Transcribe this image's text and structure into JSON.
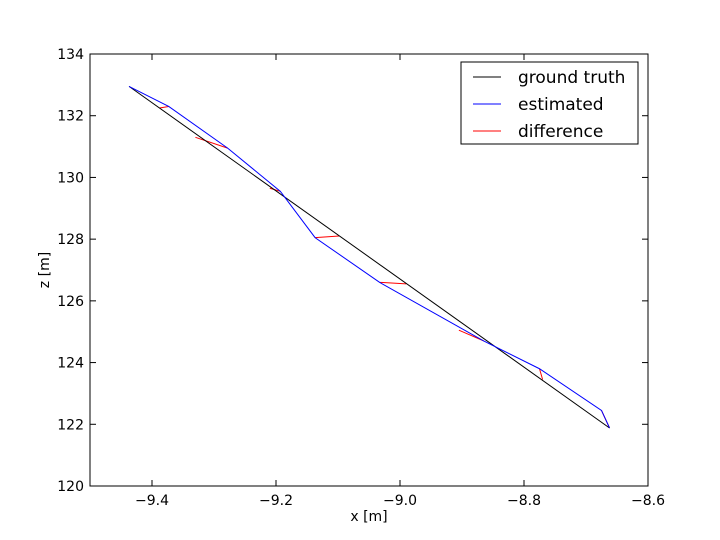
{
  "chart_data": {
    "type": "line",
    "title": "",
    "xlabel": "x [m]",
    "ylabel": "z [m]",
    "xlim": [
      -9.5,
      -8.6
    ],
    "ylim": [
      120,
      134
    ],
    "xticks": [
      -9.4,
      -9.2,
      -9.0,
      -8.8,
      -8.6
    ],
    "xtick_labels": [
      "−9.4",
      "−9.2",
      "−9.0",
      "−8.8",
      "−8.6"
    ],
    "yticks": [
      120,
      122,
      124,
      126,
      128,
      130,
      132,
      134
    ],
    "ytick_labels": [
      "120",
      "122",
      "124",
      "126",
      "128",
      "130",
      "132",
      "134"
    ],
    "grid": false,
    "legend_position": "top-right",
    "series": [
      {
        "name": "ground truth",
        "color": "#000000",
        "x": [
          -9.437,
          -8.662
        ],
        "y": [
          132.95,
          121.88
        ]
      },
      {
        "name": "estimated",
        "color": "#0000ff",
        "x": [
          -9.437,
          -9.373,
          -9.278,
          -9.193,
          -9.137,
          -9.033,
          -8.865,
          -8.775,
          -8.675,
          -8.662
        ],
        "y": [
          132.95,
          132.3,
          130.95,
          129.55,
          128.05,
          126.6,
          124.7,
          123.8,
          122.45,
          121.88
        ]
      },
      {
        "name": "difference",
        "color": "#ff0000",
        "segments": [
          {
            "x": [
              -9.437,
              -9.437
            ],
            "y": [
              132.95,
              132.95
            ]
          },
          {
            "x": [
              -9.373,
              -9.388
            ],
            "y": [
              132.3,
              132.25
            ]
          },
          {
            "x": [
              -9.278,
              -9.33
            ],
            "y": [
              130.95,
              131.3
            ]
          },
          {
            "x": [
              -9.193,
              -9.21
            ],
            "y": [
              129.55,
              129.65
            ]
          },
          {
            "x": [
              -9.137,
              -9.098
            ],
            "y": [
              128.05,
              128.1
            ]
          },
          {
            "x": [
              -9.033,
              -8.99
            ],
            "y": [
              126.6,
              126.55
            ]
          },
          {
            "x": [
              -8.865,
              -8.905
            ],
            "y": [
              124.7,
              125.05
            ]
          },
          {
            "x": [
              -8.775,
              -8.77
            ],
            "y": [
              123.8,
              123.45
            ]
          },
          {
            "x": [
              -8.675,
              -8.662
            ],
            "y": [
              122.45,
              121.88
            ]
          }
        ]
      }
    ]
  }
}
